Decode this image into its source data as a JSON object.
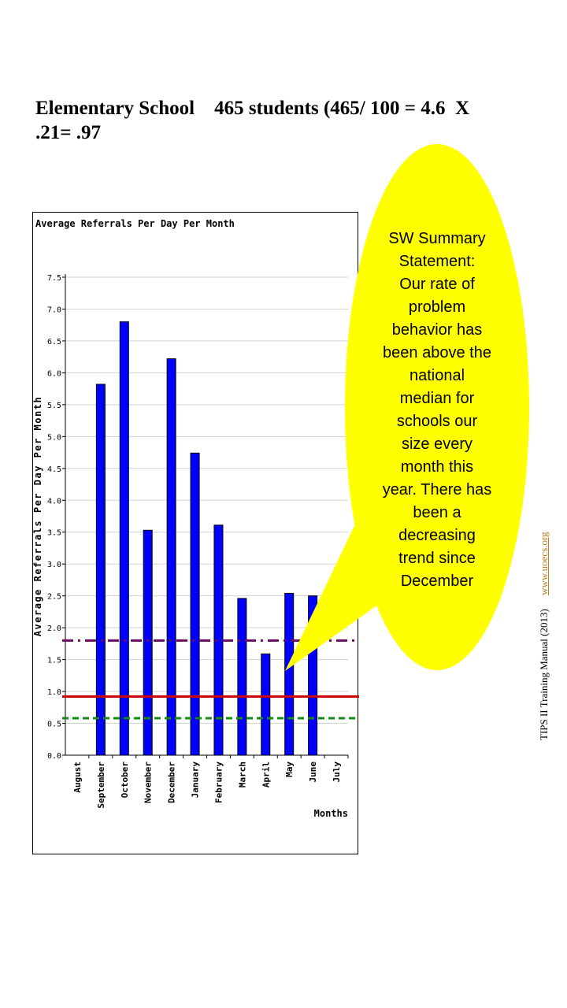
{
  "heading": {
    "line1": "Elementary School    465 students (465/ 100 = 4.6  X",
    "line2": ".21= .97"
  },
  "chart_data": {
    "type": "bar",
    "title": "Average Referrals Per Day Per Month",
    "ylabel": "Average Referrals Per Day Per Month",
    "xlabel": "Months",
    "ylim": [
      0,
      7.5
    ],
    "yticks": [
      "0.0",
      "0.5",
      "1.0",
      "1.5",
      "2.0",
      "2.5",
      "3.0",
      "3.5",
      "4.0",
      "4.5",
      "5.0",
      "5.5",
      "6.0",
      "6.5",
      "7.0",
      "7.5"
    ],
    "categories": [
      "August",
      "September",
      "October",
      "November",
      "December",
      "January",
      "February",
      "March",
      "April",
      "May",
      "June",
      "July"
    ],
    "values": [
      0,
      5.82,
      6.8,
      3.53,
      6.22,
      4.74,
      3.61,
      2.46,
      1.59,
      2.54,
      2.5,
      0
    ],
    "bar_color": "#0000ff",
    "grid": true,
    "reference_lines": [
      {
        "value": 1.8,
        "color": "#6a0a5e",
        "style": "dash-dot"
      },
      {
        "value": 0.92,
        "color": "#cc0000",
        "style": "solid"
      },
      {
        "value": 0.58,
        "color": "#138a13",
        "style": "dashed"
      }
    ]
  },
  "callout": {
    "color": "#ffff00",
    "lines": [
      "SW Summary",
      "Statement:",
      "Our rate of",
      "problem",
      "behavior has",
      "been above the",
      "national",
      "median for",
      "schools our",
      "size every",
      "month this",
      "year. There has",
      "been a",
      "decreasing",
      "trend since",
      "December"
    ]
  },
  "side_note": {
    "text": "TIPS II Training Manual (2013)",
    "link": "www.uoecs.org"
  }
}
